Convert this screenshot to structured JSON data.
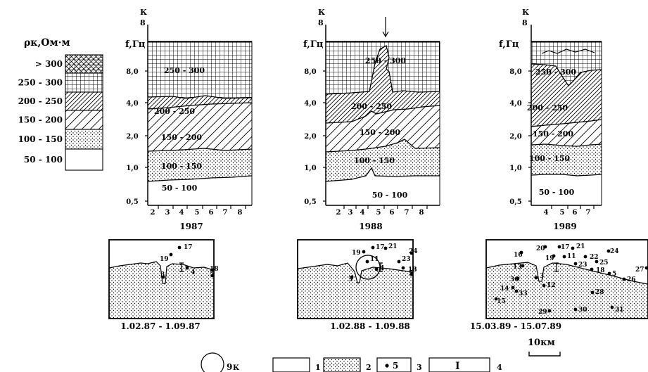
{
  "legend": {
    "title": "ρк,Ом·м",
    "items": [
      {
        "label": "> 300",
        "pattern": "crosshatch"
      },
      {
        "label": "250 - 300",
        "pattern": "grid"
      },
      {
        "label": "200 - 250",
        "pattern": "hatch-dense"
      },
      {
        "label": "150 - 200",
        "pattern": "hatch"
      },
      {
        "label": "100 - 150",
        "pattern": "dots"
      },
      {
        "label": "50 - 100",
        "pattern": "blank"
      }
    ]
  },
  "axis": {
    "k_label": "К",
    "k_value": "8",
    "f_label": "f,Гц",
    "f_ticks": [
      "8,0",
      "4,0",
      "2,0",
      "1,0",
      "0,5"
    ]
  },
  "panels": [
    {
      "year": "1987",
      "months": [
        "2",
        "3",
        "4",
        "5",
        "6",
        "7",
        "8"
      ],
      "period": "1.02.87 - 1.09.87",
      "labels": [
        "250 - 300",
        "200 - 250",
        "150 - 200",
        "100 - 150",
        "50 - 100"
      ],
      "stations": [
        "17",
        "19",
        "3",
        "4",
        "18",
        "5"
      ]
    },
    {
      "year": "1988",
      "months": [
        "2",
        "3",
        "4",
        "5",
        "6",
        "7",
        "8"
      ],
      "period": "1.02.88 - 1.09.88",
      "labels": [
        "250 - 300",
        "200 - 250",
        "150 - 200",
        "100 - 150",
        "50 - 100"
      ],
      "stations": [
        "19",
        "17",
        "21",
        "11",
        "24",
        "23",
        "4",
        "18",
        "3",
        "5"
      ]
    },
    {
      "year": "1989",
      "months": [
        "4",
        "5",
        "6",
        "7"
      ],
      "period": "15.03.89 - 15.07.89",
      "labels": [
        "250 - 300",
        "200 - 250",
        "150 - 200",
        "100 - 150",
        "50 - 100"
      ],
      "stations": [
        "20",
        "17",
        "21",
        "16",
        "19",
        "11",
        "22",
        "24",
        "13",
        "23",
        "25",
        "18",
        "5",
        "26",
        "27",
        "36",
        "3",
        "12",
        "14",
        "33",
        "28",
        "15",
        "29",
        "30",
        "31"
      ]
    }
  ],
  "scale": {
    "label": "10км"
  },
  "bottom_legend": [
    {
      "num": "9",
      "suffix": "К",
      "symbol": "circle"
    },
    {
      "num": "1",
      "symbol": "blank-box"
    },
    {
      "num": "2",
      "symbol": "dot-box"
    },
    {
      "num": "3",
      "inner": "5",
      "symbol": "point-box"
    },
    {
      "num": "4",
      "inner": "I",
      "symbol": "marker-box"
    }
  ]
}
